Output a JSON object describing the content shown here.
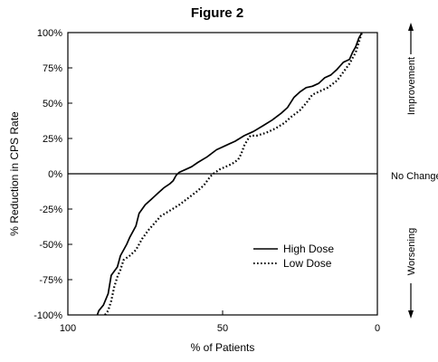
{
  "chart_data": {
    "type": "line",
    "title": "Figure 2",
    "xlabel": "% of Patients",
    "ylabel": "% Reduction in CPS Rate",
    "x_reversed": true,
    "xlim": [
      100,
      0
    ],
    "ylim": [
      -100,
      100
    ],
    "x_ticks": [
      {
        "value": 100,
        "label": "100"
      },
      {
        "value": 50,
        "label": "50"
      },
      {
        "value": 0,
        "label": "0"
      }
    ],
    "y_ticks": [
      {
        "value": 100,
        "label": "100%"
      },
      {
        "value": 75,
        "label": "75%"
      },
      {
        "value": 50,
        "label": "50%"
      },
      {
        "value": 25,
        "label": "25%"
      },
      {
        "value": 0,
        "label": "0%"
      },
      {
        "value": -25,
        "label": "-25%"
      },
      {
        "value": -50,
        "label": "-50%"
      },
      {
        "value": -75,
        "label": "-75%"
      },
      {
        "value": -100,
        "label": "-100%"
      }
    ],
    "reference_line": {
      "y": 0
    },
    "grid": false,
    "legend_position": "lower-right",
    "series": [
      {
        "name": "High Dose",
        "style": "solid",
        "points": [
          [
            90.5,
            -100
          ],
          [
            90,
            -97
          ],
          [
            88.5,
            -93
          ],
          [
            87,
            -85
          ],
          [
            86,
            -72
          ],
          [
            84,
            -66
          ],
          [
            83,
            -58
          ],
          [
            81,
            -50
          ],
          [
            80,
            -45
          ],
          [
            78,
            -37
          ],
          [
            77,
            -28
          ],
          [
            75,
            -22
          ],
          [
            73,
            -18
          ],
          [
            71,
            -14
          ],
          [
            69,
            -10
          ],
          [
            67,
            -7
          ],
          [
            66,
            -5
          ],
          [
            65,
            -1
          ],
          [
            64,
            1
          ],
          [
            62,
            3
          ],
          [
            60,
            5
          ],
          [
            58,
            8
          ],
          [
            55,
            12
          ],
          [
            52,
            17
          ],
          [
            49,
            20
          ],
          [
            46,
            23
          ],
          [
            43,
            27
          ],
          [
            40,
            30
          ],
          [
            37,
            34
          ],
          [
            34,
            38
          ],
          [
            31,
            43
          ],
          [
            29,
            47
          ],
          [
            27,
            54
          ],
          [
            25,
            58
          ],
          [
            23,
            61
          ],
          [
            21,
            62
          ],
          [
            19,
            64
          ],
          [
            17,
            68
          ],
          [
            15,
            70
          ],
          [
            13,
            74
          ],
          [
            11,
            79
          ],
          [
            9,
            81
          ],
          [
            8,
            86
          ],
          [
            7,
            90
          ],
          [
            6,
            96
          ],
          [
            5,
            100
          ]
        ]
      },
      {
        "name": "Low Dose",
        "style": "dotted",
        "points": [
          [
            88,
            -100
          ],
          [
            87,
            -97
          ],
          [
            86,
            -90
          ],
          [
            85,
            -80
          ],
          [
            84,
            -73
          ],
          [
            83,
            -68
          ],
          [
            82,
            -61
          ],
          [
            80,
            -58
          ],
          [
            78,
            -54
          ],
          [
            76,
            -46
          ],
          [
            74,
            -40
          ],
          [
            72,
            -35
          ],
          [
            70,
            -30
          ],
          [
            67,
            -26
          ],
          [
            64,
            -22
          ],
          [
            61,
            -17
          ],
          [
            58,
            -12
          ],
          [
            56,
            -8
          ],
          [
            55,
            -5
          ],
          [
            54,
            -2
          ],
          [
            53,
            0
          ],
          [
            51,
            3
          ],
          [
            49,
            5
          ],
          [
            47,
            7
          ],
          [
            45,
            10
          ],
          [
            44,
            14
          ],
          [
            43,
            20
          ],
          [
            42,
            24
          ],
          [
            41,
            27
          ],
          [
            39,
            27
          ],
          [
            36,
            29
          ],
          [
            33,
            32
          ],
          [
            30,
            36
          ],
          [
            28,
            40
          ],
          [
            25,
            45
          ],
          [
            23,
            50
          ],
          [
            21,
            56
          ],
          [
            19,
            58
          ],
          [
            16,
            61
          ],
          [
            13,
            66
          ],
          [
            11,
            72
          ],
          [
            9,
            78
          ],
          [
            7,
            86
          ],
          [
            6,
            93
          ],
          [
            5,
            100
          ]
        ]
      }
    ],
    "side_labels": {
      "improvement": "Improvement",
      "no_change": "No Change",
      "worsening": "Worsening"
    }
  },
  "colors": {
    "line": "#000000",
    "background": "#ffffff"
  }
}
